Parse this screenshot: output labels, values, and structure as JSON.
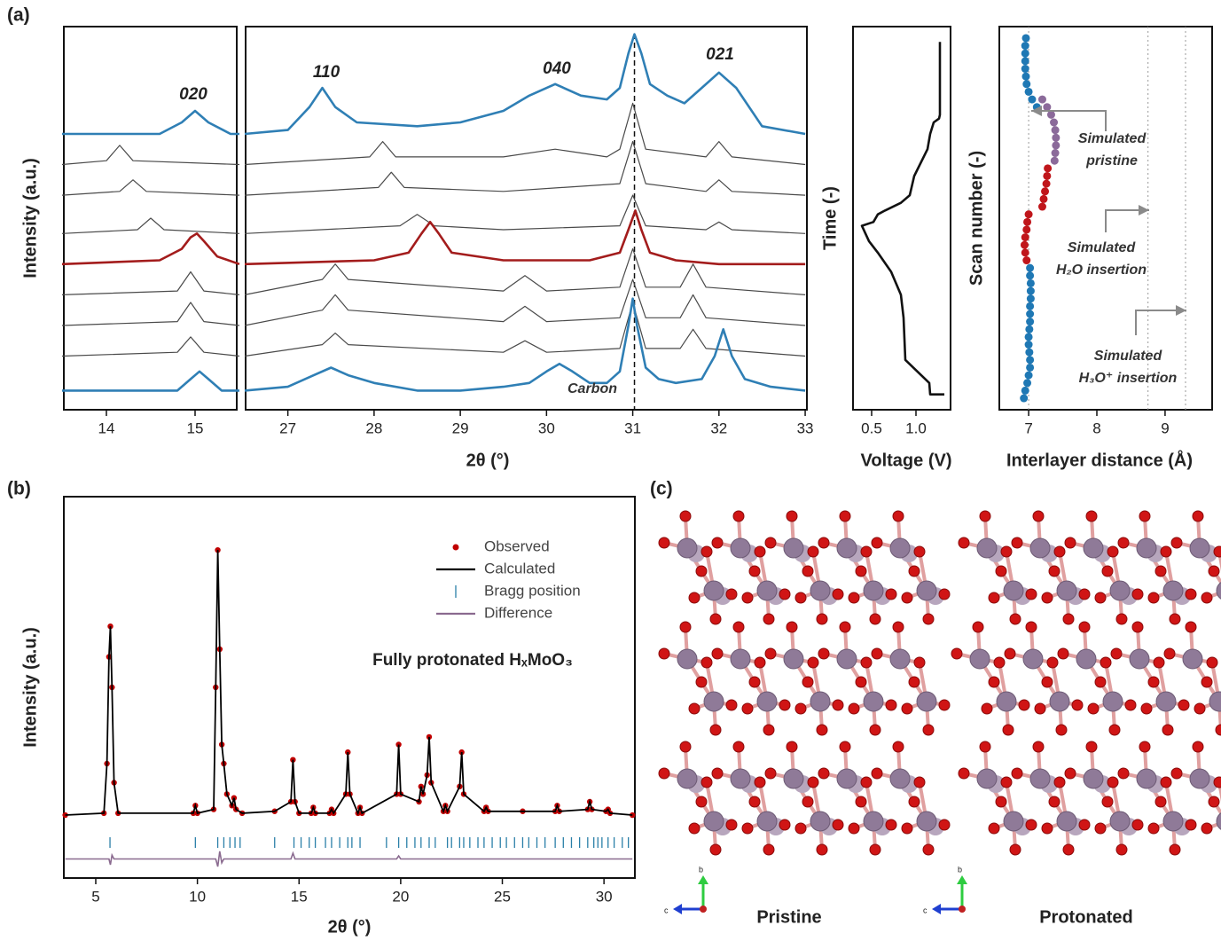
{
  "panel_labels": [
    "(a)",
    "(b)",
    "(c)"
  ],
  "chart_data": [
    {
      "type": "line",
      "xlim": [
        13.52,
        15.47
      ],
      "xticks": [
        14,
        15
      ],
      "ylim": [
        0,
        100
      ],
      "ylabel": "Intensity (a.u.)",
      "annotations": [
        "020"
      ],
      "series": [
        {
          "color": "#4a4a4a",
          "x": [
            13.5,
            14.8,
            14.95,
            15.1,
            15.5
          ],
          "values": [
            14,
            15,
            19,
            15,
            14
          ]
        },
        {
          "color": "#4a4a4a",
          "x": [
            13.5,
            14.8,
            14.95,
            15.1,
            15.5
          ],
          "values": [
            22,
            23,
            28,
            23,
            22
          ]
        },
        {
          "color": "#4a4a4a",
          "x": [
            13.5,
            14.8,
            14.95,
            15.1,
            15.5
          ],
          "values": [
            30,
            31,
            36,
            31,
            30
          ]
        },
        {
          "color": "#4a4a4a",
          "x": [
            13.5,
            14.35,
            14.5,
            14.65,
            15.5
          ],
          "values": [
            46,
            47,
            50,
            47,
            46
          ]
        },
        {
          "color": "#4a4a4a",
          "x": [
            13.5,
            14.15,
            14.3,
            14.45,
            15.5
          ],
          "values": [
            56,
            57,
            60,
            57,
            56
          ]
        },
        {
          "color": "#4a4a4a",
          "x": [
            13.5,
            14.0,
            14.15,
            14.3,
            15.5
          ],
          "values": [
            64,
            65,
            69,
            65,
            64
          ]
        },
        {
          "color": "#2f7fb5",
          "x": [
            13.5,
            14.8,
            14.95,
            15.05,
            15.15,
            15.3,
            15.5
          ],
          "values": [
            5,
            5,
            8,
            10,
            8,
            5,
            5
          ]
        },
        {
          "color": "#a31c1c",
          "x": [
            13.5,
            14.6,
            14.85,
            14.95,
            15.02,
            15.1,
            15.25,
            15.5
          ],
          "values": [
            38,
            39,
            42,
            45,
            46,
            44,
            40,
            38
          ]
        },
        {
          "color": "#2f7fb5",
          "x": [
            13.5,
            14.6,
            14.85,
            15.0,
            15.15,
            15.4,
            15.5
          ],
          "values": [
            72,
            72,
            75,
            78,
            75,
            72,
            72
          ]
        }
      ]
    },
    {
      "type": "line",
      "xlim": [
        26.51,
        33.02
      ],
      "xticks": [
        27,
        28,
        29,
        30,
        31,
        32,
        33
      ],
      "ylim": [
        0,
        100
      ],
      "xlabel": "2θ (°)",
      "annotations": [
        "110",
        "040",
        "021",
        "Carbon"
      ],
      "reference_lines": [
        31.02
      ],
      "series": [
        {
          "color": "#4a4a4a",
          "x": [
            26.5,
            27.4,
            27.55,
            27.7,
            29.5,
            29.75,
            30.0,
            30.85,
            31.0,
            31.15,
            31.55,
            31.7,
            31.85,
            33.0
          ],
          "values": [
            14,
            17,
            20,
            17,
            15,
            18,
            15,
            16,
            28,
            16,
            16,
            21,
            16,
            14
          ]
        },
        {
          "color": "#4a4a4a",
          "x": [
            26.5,
            27.4,
            27.55,
            27.7,
            29.5,
            29.75,
            30.0,
            30.85,
            31.0,
            31.15,
            31.55,
            31.7,
            31.85,
            33.0
          ],
          "values": [
            22,
            26,
            30,
            26,
            23,
            27,
            23,
            24,
            34,
            24,
            24,
            30,
            24,
            22
          ]
        },
        {
          "color": "#4a4a4a",
          "x": [
            26.5,
            27.4,
            27.55,
            27.7,
            29.5,
            29.75,
            30.0,
            30.85,
            31.0,
            31.15,
            31.55,
            31.7,
            31.85,
            33.0
          ],
          "values": [
            30,
            34,
            38,
            34,
            31,
            35,
            31,
            32,
            42,
            32,
            32,
            38,
            32,
            30
          ]
        },
        {
          "color": "#4a4a4a",
          "x": [
            26.5,
            28.3,
            28.5,
            28.7,
            29.5,
            30.85,
            31.0,
            31.15,
            31.85,
            32.0,
            32.15,
            33.0
          ],
          "values": [
            46,
            48,
            51,
            48,
            47,
            48,
            56,
            48,
            47,
            49,
            47,
            46
          ]
        },
        {
          "color": "#4a4a4a",
          "x": [
            26.5,
            28.05,
            28.2,
            28.35,
            29.5,
            30.85,
            31.0,
            31.15,
            31.85,
            32.0,
            32.15,
            33.0
          ],
          "values": [
            56,
            58,
            62,
            58,
            57,
            59,
            70,
            59,
            57,
            60,
            57,
            56
          ]
        },
        {
          "color": "#4a4a4a",
          "x": [
            26.5,
            27.95,
            28.1,
            28.25,
            29.5,
            30.1,
            30.7,
            30.85,
            31.0,
            31.15,
            31.85,
            32.0,
            32.15,
            33.0
          ],
          "values": [
            64,
            66,
            70,
            66,
            66,
            68,
            66,
            68,
            80,
            68,
            66,
            70,
            66,
            64
          ]
        },
        {
          "color": "#2f7fb5",
          "x": [
            26.5,
            27.0,
            27.3,
            27.5,
            27.7,
            28.0,
            28.5,
            29.0,
            29.5,
            29.8,
            30.0,
            30.15,
            30.3,
            30.5,
            30.7,
            30.85,
            30.95,
            31.0,
            31.05,
            31.15,
            31.3,
            31.5,
            31.8,
            31.95,
            32.05,
            32.15,
            32.3,
            32.6,
            33.0
          ],
          "values": [
            5,
            6,
            9,
            11,
            9,
            7,
            5,
            5,
            6,
            7,
            10,
            12,
            10,
            7,
            7,
            10,
            22,
            29,
            22,
            11,
            8,
            7,
            8,
            14,
            21,
            14,
            8,
            6,
            5
          ]
        },
        {
          "color": "#a31c1c",
          "x": [
            26.5,
            28.0,
            28.4,
            28.55,
            28.65,
            28.75,
            28.9,
            29.5,
            30.5,
            30.85,
            30.95,
            31.03,
            31.1,
            31.2,
            31.5,
            32.0,
            33.0
          ],
          "values": [
            38,
            39,
            41,
            46,
            49,
            46,
            41,
            39,
            39,
            41,
            47,
            52,
            47,
            41,
            39,
            38,
            38
          ]
        },
        {
          "color": "#2f7fb5",
          "x": [
            26.5,
            27.0,
            27.25,
            27.4,
            27.55,
            27.8,
            28.5,
            29.0,
            29.5,
            29.8,
            30.1,
            30.4,
            30.7,
            30.85,
            30.95,
            31.02,
            31.1,
            31.2,
            31.4,
            31.6,
            31.8,
            32.0,
            32.2,
            32.5,
            33.0
          ],
          "values": [
            72,
            73,
            79,
            84,
            79,
            75,
            74,
            75,
            78,
            82,
            85,
            82,
            81,
            84,
            93,
            98,
            93,
            85,
            82,
            80,
            84,
            88,
            84,
            74,
            72
          ]
        }
      ]
    },
    {
      "type": "line",
      "xlim": [
        0.29,
        1.39
      ],
      "xticks": [
        0.5,
        {
          "value": 1,
          "label": "1.0"
        }
      ],
      "ylim": [
        0,
        100
      ],
      "xlabel": "Voltage (V)",
      "ylabel": "Time (-)",
      "series": [
        {
          "color": "#111111",
          "x": [
            1.32,
            1.16,
            1.15,
            0.88,
            0.86,
            0.83,
            0.72,
            0.57,
            0.47,
            0.39,
            0.52,
            0.57,
            0.65,
            0.83,
            0.93,
            0.98,
            1.13,
            1.16,
            1.2,
            1.26,
            1.27,
            1.27
          ],
          "values": [
            4,
            4,
            7,
            13,
            24,
            30,
            36,
            41,
            44,
            48,
            49,
            51,
            52,
            54,
            56,
            61,
            68,
            72,
            75,
            76,
            77,
            96
          ]
        }
      ]
    },
    {
      "type": "scatter",
      "xlim": [
        6.57,
        9.69
      ],
      "xticks": [
        7,
        8,
        9
      ],
      "ylim": [
        0,
        100
      ],
      "xlabel": "Interlayer distance (Å)",
      "ylabel": "Scan number (-)",
      "reference_lines": [
        7,
        8.75,
        9.3
      ],
      "annotations": [
        [
          "Simulated",
          "pristine"
        ],
        [
          "Simulated",
          "H₂O insertion"
        ],
        [
          "Simulated",
          "H₃O⁺ insertion"
        ]
      ],
      "series": [
        {
          "color": "#1f78b4",
          "x": [
            6.93,
            6.95,
            6.98,
            7.0,
            7.02,
            7.02,
            7.01,
            7.0,
            7.0,
            7.01,
            7.02,
            7.02,
            7.02,
            7.03,
            7.03,
            7.03,
            7.02,
            7.02,
            7.12,
            7.05,
            7.0,
            6.97,
            6.96,
            6.95,
            6.95,
            6.95,
            6.95,
            6.96
          ],
          "values": [
            3,
            5,
            7,
            9,
            11,
            13,
            15,
            17,
            19,
            21,
            23,
            25,
            27,
            29,
            31,
            33,
            35,
            37,
            79,
            81,
            83,
            85,
            87,
            89,
            91,
            93,
            95,
            97
          ]
        },
        {
          "color": "#c0161b",
          "x": [
            6.97,
            6.95,
            6.94,
            6.95,
            6.97,
            6.98,
            7.0,
            7.2,
            7.22,
            7.24,
            7.26,
            7.27,
            7.28
          ],
          "values": [
            39,
            41,
            43,
            45,
            47,
            49,
            51,
            53,
            55,
            57,
            59,
            61,
            63
          ]
        },
        {
          "color": "#8b6a9a",
          "x": [
            7.38,
            7.39,
            7.4,
            7.4,
            7.39,
            7.37,
            7.33,
            7.27,
            7.2
          ],
          "values": [
            65,
            67,
            69,
            71,
            73,
            75,
            77,
            79,
            81
          ]
        }
      ]
    },
    {
      "type": "rietveld",
      "xlim": [
        3.43,
        31.52
      ],
      "xticks": [
        5,
        10,
        15,
        20,
        25,
        30
      ],
      "ylim": [
        0,
        100
      ],
      "xlabel": "2θ (°)",
      "ylabel": "Intensity (a.u.)",
      "annotation": "Fully protonated HₓMoO₃",
      "x": [
        3.5,
        5.4,
        5.55,
        5.65,
        5.72,
        5.8,
        5.9,
        6.1,
        9.8,
        9.9,
        10.0,
        10.8,
        10.9,
        11.0,
        11.1,
        11.2,
        11.3,
        11.45,
        11.7,
        11.8,
        11.9,
        12.2,
        13.8,
        14.6,
        14.7,
        14.8,
        15.0,
        15.6,
        15.7,
        15.8,
        16.5,
        16.6,
        16.7,
        17.3,
        17.4,
        17.5,
        17.9,
        18.0,
        18.1,
        19.8,
        19.9,
        20.0,
        20.9,
        21.0,
        21.1,
        21.3,
        21.4,
        21.5,
        22.1,
        22.2,
        22.3,
        22.9,
        23.0,
        23.1,
        24.1,
        24.2,
        24.3,
        26.0,
        27.6,
        27.7,
        27.8,
        29.2,
        29.3,
        29.4,
        30.1,
        30.2,
        30.3,
        31.4
      ],
      "series": [
        {
          "name": "Observed",
          "color": "#c00000",
          "values": [
            16.5,
            17,
            30,
            58,
            66,
            50,
            25,
            17,
            17,
            19,
            17,
            18,
            50,
            86,
            60,
            35,
            30,
            22,
            19,
            21,
            18,
            17,
            17.5,
            20,
            31,
            20,
            17,
            17,
            18.5,
            17,
            17,
            18,
            17,
            22,
            33,
            22,
            17,
            18.5,
            17,
            22,
            35,
            22,
            20,
            24,
            22,
            27,
            37,
            25,
            17.5,
            19,
            17.5,
            24,
            33,
            22,
            17.5,
            18.5,
            17.5,
            17.5,
            17.5,
            19,
            17.5,
            18,
            20,
            18,
            17.5,
            18,
            17,
            16.5
          ]
        },
        {
          "name": "Calculated",
          "color": "#000000",
          "values": [
            16.5,
            17,
            30,
            58,
            66,
            50,
            25,
            17,
            17,
            19,
            17,
            18,
            50,
            86,
            60,
            35,
            30,
            22,
            19,
            21,
            18,
            17,
            17.5,
            20,
            31,
            20,
            17,
            17,
            18.5,
            17,
            17,
            18,
            17,
            22,
            33,
            22,
            17,
            18.5,
            17,
            22,
            35,
            22,
            20,
            24,
            22,
            27,
            37,
            25,
            17.5,
            19,
            17.5,
            24,
            33,
            22,
            17.5,
            18.5,
            17.5,
            17.5,
            17.5,
            19,
            17.5,
            18,
            20,
            18,
            17.5,
            18,
            17,
            16.5
          ]
        },
        {
          "name": "Bragg position",
          "color": "#2a7fa8",
          "x": [
            5.7,
            9.9,
            11.0,
            11.3,
            11.6,
            11.85,
            12.1,
            13.8,
            14.75,
            15.1,
            15.5,
            15.8,
            16.3,
            16.6,
            17.0,
            17.4,
            17.6,
            18.0,
            19.3,
            19.9,
            20.3,
            20.7,
            21.0,
            21.4,
            21.7,
            22.3,
            22.5,
            22.9,
            23.1,
            23.4,
            23.8,
            24.1,
            24.5,
            24.9,
            25.2,
            25.6,
            26.0,
            26.3,
            26.7,
            27.1,
            27.6,
            28.0,
            28.4,
            28.8,
            29.2,
            29.5,
            29.7,
            29.9,
            30.2,
            30.5,
            30.9,
            31.2
          ]
        },
        {
          "name": "Difference",
          "color": "#8a6a8f",
          "values": [
            5,
            5,
            5,
            5,
            3.5,
            6,
            5,
            5,
            5,
            5,
            5,
            5,
            5,
            3,
            7,
            4,
            5,
            5,
            5,
            5,
            5,
            5,
            5,
            5,
            6.5,
            5,
            5,
            5,
            5,
            5,
            5,
            5,
            5,
            5,
            5,
            5,
            5,
            5,
            5,
            5,
            5.8,
            5,
            5,
            5,
            5,
            5,
            5,
            5,
            5,
            5,
            5,
            5,
            5,
            5,
            5,
            5,
            5,
            5,
            5,
            5,
            5,
            5,
            5,
            5,
            5,
            5,
            5,
            5
          ]
        }
      ]
    }
  ],
  "structures": {
    "labels": [
      "Pristine",
      "Protonated"
    ],
    "axis_labels": [
      "b",
      "c"
    ]
  }
}
